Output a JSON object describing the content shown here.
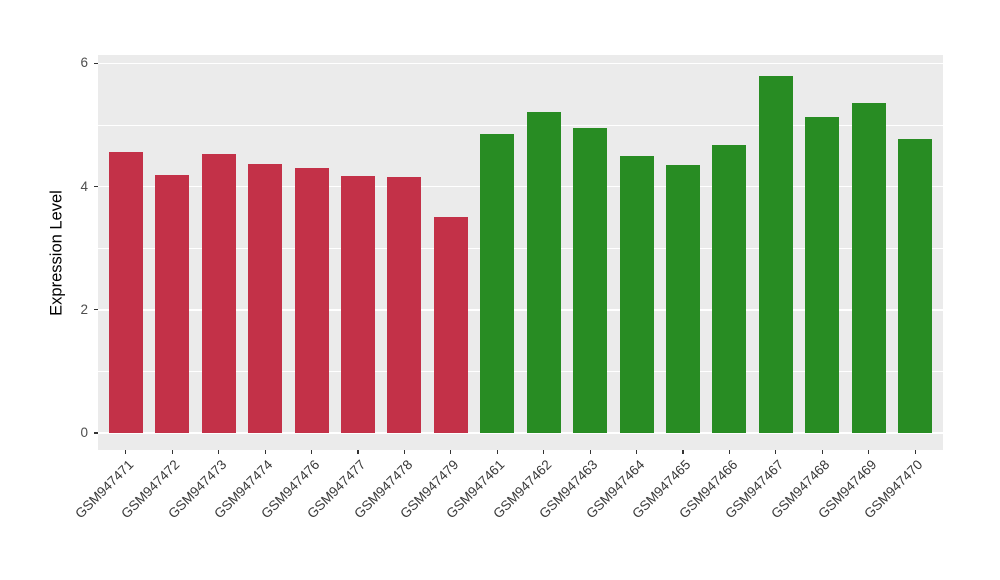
{
  "chart_data": {
    "type": "bar",
    "title": "",
    "xlabel": "",
    "ylabel": "Expression Level",
    "ylim": [
      0,
      6
    ],
    "yticks_major": [
      0,
      2,
      4,
      6
    ],
    "ytick_labels": [
      "0",
      "2",
      "4",
      "6"
    ],
    "yticks_minor": [
      1,
      3,
      5
    ],
    "grid": "major and minor horizontal white gridlines on grey panel",
    "legend_position": "none",
    "categories": [
      "GSM947471",
      "GSM947472",
      "GSM947473",
      "GSM947474",
      "GSM947476",
      "GSM947477",
      "GSM947478",
      "GSM947479",
      "GSM947461",
      "GSM947462",
      "GSM947463",
      "GSM947464",
      "GSM947465",
      "GSM947466",
      "GSM947467",
      "GSM947468",
      "GSM947469",
      "GSM947470"
    ],
    "values": [
      4.57,
      4.19,
      4.53,
      4.36,
      4.3,
      4.18,
      4.16,
      3.5,
      4.86,
      5.21,
      4.95,
      4.49,
      4.35,
      4.67,
      5.8,
      5.13,
      5.35,
      4.77
    ],
    "bar_colors": [
      "#C33148",
      "#C33148",
      "#C33148",
      "#C33148",
      "#C33148",
      "#C33148",
      "#C33148",
      "#C33148",
      "#288C23",
      "#288C23",
      "#288C23",
      "#288C23",
      "#288C23",
      "#288C23",
      "#288C23",
      "#288C23",
      "#288C23",
      "#288C23"
    ],
    "groups": [
      {
        "name": "red-group",
        "color": "#C33148",
        "samples": [
          "GSM947471",
          "GSM947472",
          "GSM947473",
          "GSM947474",
          "GSM947476",
          "GSM947477",
          "GSM947478",
          "GSM947479"
        ]
      },
      {
        "name": "green-group",
        "color": "#288C23",
        "samples": [
          "GSM947461",
          "GSM947462",
          "GSM947463",
          "GSM947464",
          "GSM947465",
          "GSM947466",
          "GSM947467",
          "GSM947468",
          "GSM947469",
          "GSM947470"
        ]
      }
    ],
    "colors": {
      "panel_background": "#EBEBEB",
      "gridline": "#FFFFFF",
      "tick_mark": "#333333",
      "axis_text": "#4D4D4D",
      "x_axis_text": "#383838",
      "axis_title": "#000000",
      "figure_background": "#FFFFFF"
    }
  }
}
